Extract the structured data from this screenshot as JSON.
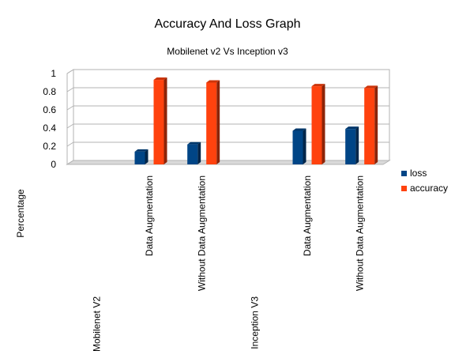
{
  "chart_data": {
    "type": "bar",
    "title": "Accuracy And Loss Graph",
    "subtitle": "Mobilenet v2 Vs Inception v3",
    "ylabel": "Percentage",
    "xlabel": "",
    "ylim": [
      0,
      1
    ],
    "yticks": [
      "0",
      "0.2",
      "0.4",
      "0.6",
      "0.8",
      "1"
    ],
    "grid": true,
    "legend_position": "right",
    "groups": [
      "Mobilenet V2",
      "Inception V3"
    ],
    "categories": [
      "",
      "Data Augmentation",
      "Without Data Augmentation",
      "",
      "Data Augmentation",
      "Without Data Augmentation"
    ],
    "series": [
      {
        "name": "loss",
        "color": "#004586",
        "values": [
          0,
          0.14,
          0.22,
          0,
          0.37,
          0.39
        ]
      },
      {
        "name": "accuracy",
        "color": "#ff420e",
        "values": [
          0,
          0.93,
          0.9,
          0,
          0.86,
          0.84
        ]
      }
    ]
  }
}
